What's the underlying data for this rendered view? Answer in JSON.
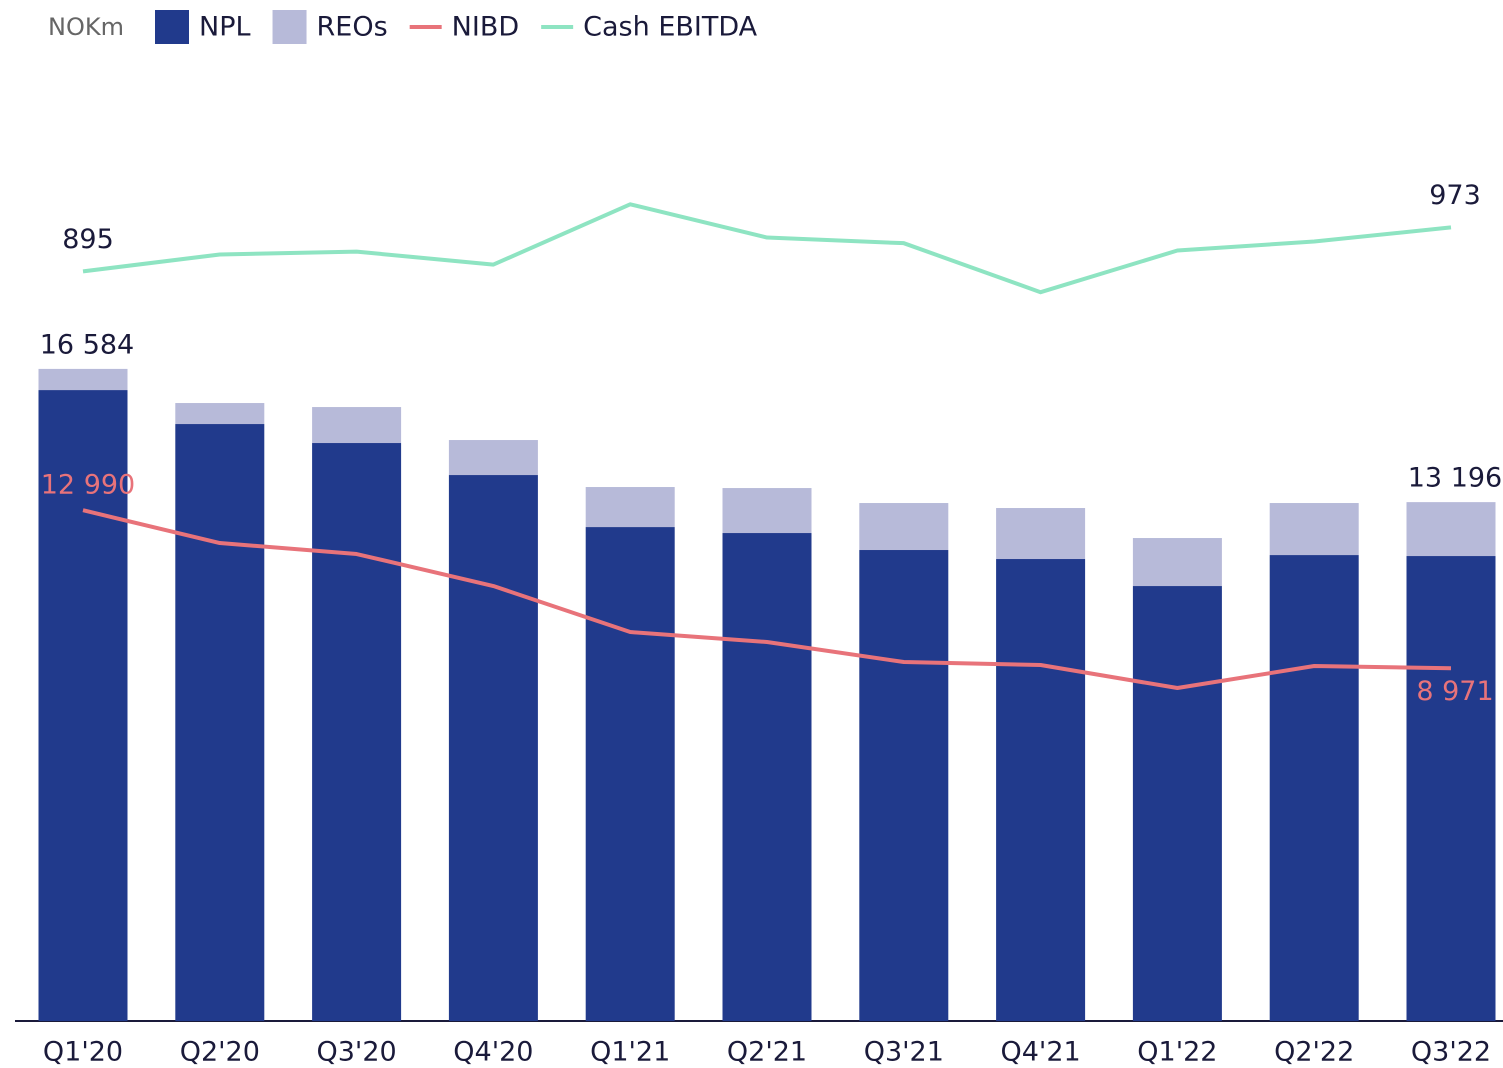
{
  "chart_data": {
    "type": "bar",
    "unit": "NOKm",
    "categories": [
      "Q1'20",
      "Q2'20",
      "Q3'20",
      "Q4'20",
      "Q1'21",
      "Q2'21",
      "Q3'21",
      "Q4'21",
      "Q1'22",
      "Q2'22",
      "Q3'22"
    ],
    "series": [
      {
        "name": "NPL",
        "type": "bar",
        "color": "#213a8c",
        "values": [
          16046,
          15182,
          14699,
          13885,
          12562,
          12410,
          11978,
          11749,
          11062,
          11850,
          11825
        ]
      },
      {
        "name": "REOs",
        "type": "bar",
        "color": "#b7bad9",
        "values": [
          538,
          534,
          915,
          890,
          1018,
          1144,
          1195,
          1297,
          1221,
          1323,
          1371
        ]
      },
      {
        "name": "NIBD",
        "type": "line",
        "color": "#e8737a",
        "values": [
          12990,
          12156,
          11876,
          11062,
          9892,
          9638,
          9129,
          9053,
          8468,
          9028,
          8971
        ],
        "value_labels": [
          "12 990",
          null,
          null,
          null,
          null,
          null,
          null,
          null,
          null,
          null,
          "8 971"
        ]
      },
      {
        "name": "Cash EBITDA",
        "type": "line",
        "axis": "y2",
        "color": "#8ee4c2",
        "values": [
          895,
          925,
          930,
          907,
          1014,
          955,
          945,
          858,
          932,
          948,
          973
        ],
        "value_labels": [
          "895",
          null,
          null,
          null,
          null,
          null,
          null,
          null,
          null,
          null,
          "973"
        ]
      }
    ],
    "annotations": [
      {
        "text": "16 584",
        "category": "Q1'20"
      },
      {
        "text": "13 196",
        "category": "Q3'22"
      }
    ],
    "ylim": [
      0,
      24440
    ],
    "y2lim": [
      -435,
      1270
    ],
    "legend": "top-left"
  }
}
